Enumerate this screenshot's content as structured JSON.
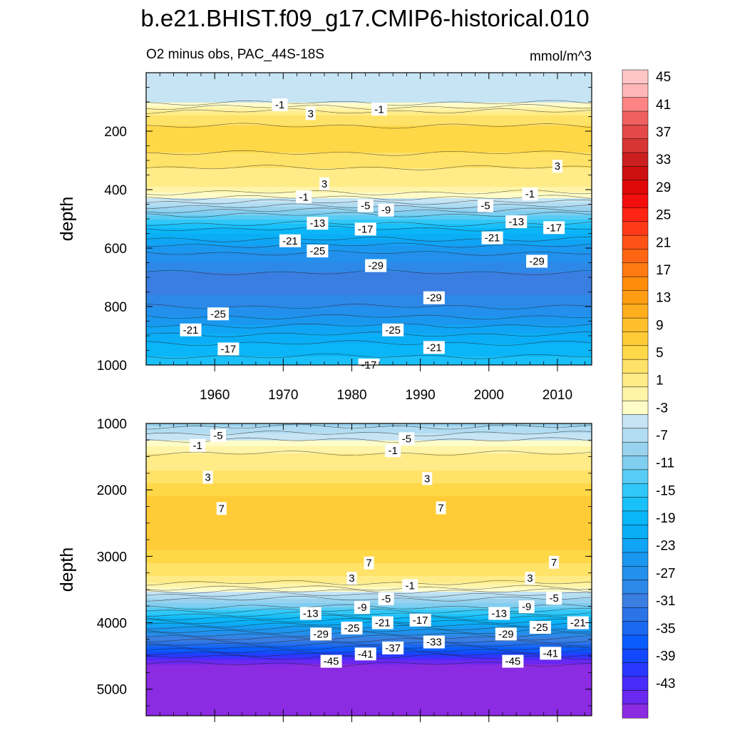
{
  "chart_data": [
    {
      "type": "heatmap",
      "title": "b.e21.BHIST.f09_g17.CMIP6-historical.010",
      "subtitle": "O2 minus obs, PAC_44S-18S",
      "units": "mmol/m^3",
      "ylabel": "depth",
      "xlim": [
        1950,
        2015
      ],
      "ylim": [
        1000,
        0
      ],
      "x_ticks": [
        1960,
        1970,
        1980,
        1990,
        2000,
        2010
      ],
      "y_ticks": [
        200,
        400,
        600,
        800,
        1000
      ],
      "depth_profile": [
        {
          "depth": 20,
          "value": -4
        },
        {
          "depth": 60,
          "value": -5
        },
        {
          "depth": 90,
          "value": -5
        },
        {
          "depth": 110,
          "value": -2
        },
        {
          "depth": 125,
          "value": 0
        },
        {
          "depth": 145,
          "value": 3
        },
        {
          "depth": 200,
          "value": 6
        },
        {
          "depth": 250,
          "value": 6
        },
        {
          "depth": 300,
          "value": 4
        },
        {
          "depth": 350,
          "value": 2
        },
        {
          "depth": 390,
          "value": 1
        },
        {
          "depth": 420,
          "value": -2
        },
        {
          "depth": 450,
          "value": -6
        },
        {
          "depth": 500,
          "value": -13
        },
        {
          "depth": 550,
          "value": -19
        },
        {
          "depth": 600,
          "value": -24
        },
        {
          "depth": 650,
          "value": -27
        },
        {
          "depth": 700,
          "value": -30
        },
        {
          "depth": 760,
          "value": -29
        },
        {
          "depth": 820,
          "value": -26
        },
        {
          "depth": 880,
          "value": -22
        },
        {
          "depth": 940,
          "value": -18
        },
        {
          "depth": 1000,
          "value": -16
        }
      ],
      "contour_labels": [
        {
          "x": 1969.5,
          "y": 110,
          "text": "-1"
        },
        {
          "x": 1974,
          "y": 140,
          "text": "3"
        },
        {
          "x": 1984,
          "y": 125,
          "text": "-1"
        },
        {
          "x": 2010,
          "y": 320,
          "text": "3"
        },
        {
          "x": 1976,
          "y": 380,
          "text": "3"
        },
        {
          "x": 1973,
          "y": 425,
          "text": "-1"
        },
        {
          "x": 2006,
          "y": 415,
          "text": "-1"
        },
        {
          "x": 1982,
          "y": 455,
          "text": "-5"
        },
        {
          "x": 1985,
          "y": 470,
          "text": "-9"
        },
        {
          "x": 1999.5,
          "y": 455,
          "text": "-5"
        },
        {
          "x": 1975,
          "y": 515,
          "text": "-13"
        },
        {
          "x": 2004,
          "y": 510,
          "text": "-13"
        },
        {
          "x": 1982,
          "y": 535,
          "text": "-17"
        },
        {
          "x": 2009.5,
          "y": 530,
          "text": "-17"
        },
        {
          "x": 1971,
          "y": 575,
          "text": "-21"
        },
        {
          "x": 2000.5,
          "y": 565,
          "text": "-21"
        },
        {
          "x": 1975,
          "y": 610,
          "text": "-25"
        },
        {
          "x": 1983.5,
          "y": 660,
          "text": "-29"
        },
        {
          "x": 2007,
          "y": 645,
          "text": "-29"
        },
        {
          "x": 1992,
          "y": 770,
          "text": "-29"
        },
        {
          "x": 1960.5,
          "y": 825,
          "text": "-25"
        },
        {
          "x": 1986,
          "y": 880,
          "text": "-25"
        },
        {
          "x": 1956.5,
          "y": 880,
          "text": "-21"
        },
        {
          "x": 1992,
          "y": 940,
          "text": "-21"
        },
        {
          "x": 1962,
          "y": 945,
          "text": "-17"
        },
        {
          "x": 1982.5,
          "y": 1000,
          "text": "-17"
        }
      ]
    },
    {
      "type": "heatmap",
      "ylabel": "depth",
      "xlim": [
        1950,
        2015
      ],
      "ylim": [
        5400,
        1000
      ],
      "y_ticks": [
        1000,
        2000,
        3000,
        4000,
        5000
      ],
      "depth_profile": [
        {
          "depth": 1000,
          "value": -8
        },
        {
          "depth": 1100,
          "value": -6
        },
        {
          "depth": 1200,
          "value": -4
        },
        {
          "depth": 1350,
          "value": -1
        },
        {
          "depth": 1500,
          "value": 2
        },
        {
          "depth": 1700,
          "value": 3
        },
        {
          "depth": 1900,
          "value": 5
        },
        {
          "depth": 2100,
          "value": 7
        },
        {
          "depth": 2300,
          "value": 8
        },
        {
          "depth": 2600,
          "value": 8.5
        },
        {
          "depth": 2900,
          "value": 7
        },
        {
          "depth": 3100,
          "value": 5
        },
        {
          "depth": 3300,
          "value": 3
        },
        {
          "depth": 3450,
          "value": 0
        },
        {
          "depth": 3550,
          "value": -4
        },
        {
          "depth": 3700,
          "value": -9
        },
        {
          "depth": 3850,
          "value": -14
        },
        {
          "depth": 4000,
          "value": -20
        },
        {
          "depth": 4150,
          "value": -26
        },
        {
          "depth": 4300,
          "value": -32
        },
        {
          "depth": 4450,
          "value": -38
        },
        {
          "depth": 4560,
          "value": -43
        },
        {
          "depth": 4650,
          "value": -46
        },
        {
          "depth": 5400,
          "value": -46
        }
      ],
      "contour_labels": [
        {
          "x": 1960.5,
          "y": 1180,
          "text": "-5"
        },
        {
          "x": 1957.5,
          "y": 1330,
          "text": "-1"
        },
        {
          "x": 1988,
          "y": 1230,
          "text": "-5"
        },
        {
          "x": 1986,
          "y": 1410,
          "text": "-1"
        },
        {
          "x": 1959,
          "y": 1810,
          "text": "3"
        },
        {
          "x": 1991,
          "y": 1830,
          "text": "3"
        },
        {
          "x": 1961,
          "y": 2280,
          "text": "7"
        },
        {
          "x": 1993,
          "y": 2270,
          "text": "7"
        },
        {
          "x": 1982.5,
          "y": 3100,
          "text": "7"
        },
        {
          "x": 2009.5,
          "y": 3090,
          "text": "7"
        },
        {
          "x": 1980,
          "y": 3330,
          "text": "3"
        },
        {
          "x": 2006,
          "y": 3330,
          "text": "3"
        },
        {
          "x": 1988.5,
          "y": 3440,
          "text": "-1"
        },
        {
          "x": 1985,
          "y": 3640,
          "text": "-5"
        },
        {
          "x": 2009.5,
          "y": 3630,
          "text": "-5"
        },
        {
          "x": 1981.5,
          "y": 3770,
          "text": "-9"
        },
        {
          "x": 2005.5,
          "y": 3760,
          "text": "-9"
        },
        {
          "x": 1974,
          "y": 3860,
          "text": "-13"
        },
        {
          "x": 2001.5,
          "y": 3860,
          "text": "-13"
        },
        {
          "x": 1990,
          "y": 3960,
          "text": "-17"
        },
        {
          "x": 1984.5,
          "y": 4000,
          "text": "-21"
        },
        {
          "x": 2013,
          "y": 4000,
          "text": "-21"
        },
        {
          "x": 1980,
          "y": 4080,
          "text": "-25"
        },
        {
          "x": 2007.5,
          "y": 4070,
          "text": "-25"
        },
        {
          "x": 1975.5,
          "y": 4170,
          "text": "-29"
        },
        {
          "x": 2002.5,
          "y": 4170,
          "text": "-29"
        },
        {
          "x": 1992,
          "y": 4290,
          "text": "-33"
        },
        {
          "x": 1986,
          "y": 4380,
          "text": "-37"
        },
        {
          "x": 1982,
          "y": 4470,
          "text": "-41"
        },
        {
          "x": 2009,
          "y": 4460,
          "text": "-41"
        },
        {
          "x": 1977,
          "y": 4580,
          "text": "-45"
        },
        {
          "x": 2003.5,
          "y": 4580,
          "text": "-45"
        }
      ]
    }
  ],
  "colorbar": {
    "levels": [
      -45,
      -43,
      -41,
      -39,
      -37,
      -35,
      -33,
      -31,
      -29,
      -27,
      -25,
      -23,
      -21,
      -19,
      -17,
      -15,
      -13,
      -11,
      -9,
      -7,
      -5,
      -3,
      -1,
      1,
      3,
      5,
      7,
      9,
      11,
      13,
      15,
      17,
      19,
      21,
      23,
      25,
      27,
      29,
      31,
      33,
      35,
      37,
      39,
      41,
      43,
      45
    ],
    "tick_labels": [
      "45",
      "41",
      "37",
      "33",
      "29",
      "25",
      "21",
      "17",
      "13",
      "9",
      "5",
      "1",
      "-3",
      "-7",
      "-11",
      "-15",
      "-19",
      "-23",
      "-27",
      "-31",
      "-35",
      "-39",
      "-43"
    ],
    "colors": [
      "#8b2be2",
      "#6a28f0",
      "#4a2cfa",
      "#2a38ff",
      "#1448ff",
      "#0a5cff",
      "#1a68f0",
      "#2a74e8",
      "#3a7ee2",
      "#2e88e8",
      "#2290ec",
      "#1a98f0",
      "#10a4f4",
      "#0aaef6",
      "#0ab6f8",
      "#1ac0f8",
      "#30c8f8",
      "#58ccf4",
      "#80cef0",
      "#98d2ee",
      "#b2dcf2",
      "#c6e4f4",
      "#fffcc8",
      "#fff4a8",
      "#ffec88",
      "#ffe268",
      "#ffd848",
      "#ffcc38",
      "#ffbf2a",
      "#ffae1e",
      "#ff9e12",
      "#ff8c0a",
      "#ff7a10",
      "#ff6614",
      "#ff5216",
      "#ff3a18",
      "#ff2414",
      "#f40e0e",
      "#e00808",
      "#ce1010",
      "#cc2020",
      "#d83434",
      "#e44848",
      "#f06060",
      "#fc8484",
      "#ffb6b6",
      "#ffc6c6"
    ]
  }
}
